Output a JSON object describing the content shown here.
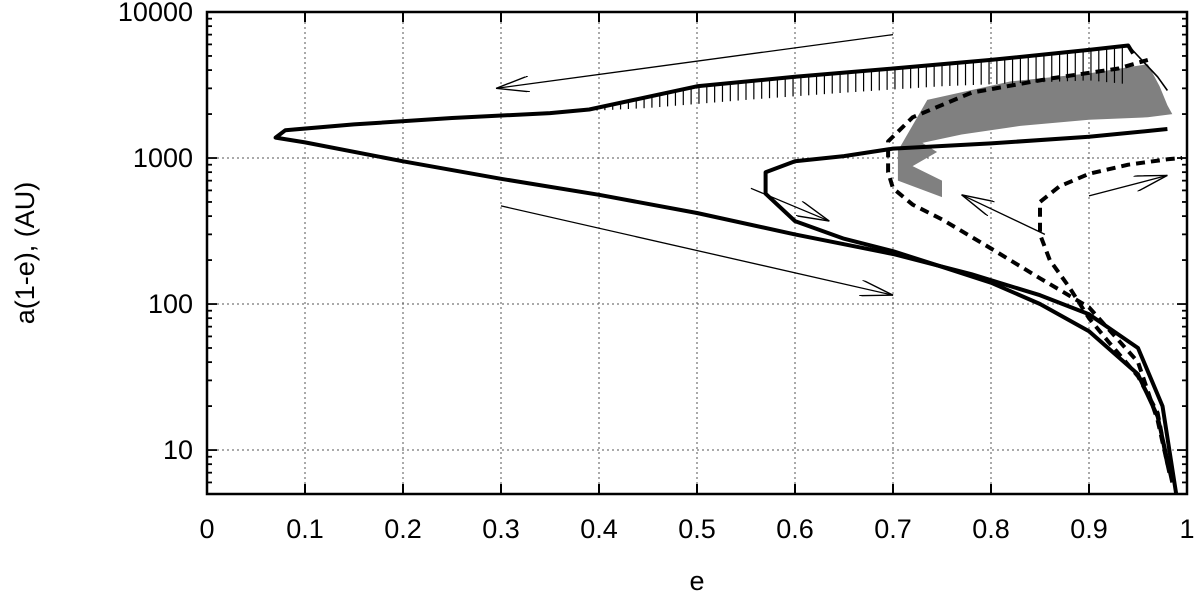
{
  "chart_data": {
    "type": "line",
    "title": "",
    "xlabel": "e",
    "ylabel": "a(1-e), (AU)",
    "xlim": [
      0,
      1
    ],
    "ylim": [
      5,
      10000
    ],
    "yscale": "log",
    "grid": true,
    "legend": "none",
    "x_ticks": [
      {
        "value": 0,
        "label": "0"
      },
      {
        "value": 0.1,
        "label": "0.1"
      },
      {
        "value": 0.2,
        "label": "0.2"
      },
      {
        "value": 0.3,
        "label": "0.3"
      },
      {
        "value": 0.4,
        "label": "0.4"
      },
      {
        "value": 0.5,
        "label": "0.5"
      },
      {
        "value": 0.6,
        "label": "0.6"
      },
      {
        "value": 0.7,
        "label": "0.7"
      },
      {
        "value": 0.8,
        "label": "0.8"
      },
      {
        "value": 0.9,
        "label": "0.9"
      },
      {
        "value": 1,
        "label": "1"
      }
    ],
    "y_ticks": [
      {
        "value": 10,
        "label": "10"
      },
      {
        "value": 100,
        "label": "100"
      },
      {
        "value": 1000,
        "label": "1000"
      },
      {
        "value": 10000,
        "label": "10000"
      }
    ],
    "series": [
      {
        "style": "solid-thick",
        "points": [
          [
            0.989,
            5
          ],
          [
            0.975,
            20
          ],
          [
            0.95,
            50
          ],
          [
            0.9,
            85
          ],
          [
            0.85,
            115
          ],
          [
            0.78,
            160
          ],
          [
            0.7,
            220
          ],
          [
            0.6,
            300
          ],
          [
            0.5,
            420
          ],
          [
            0.4,
            560
          ],
          [
            0.3,
            720
          ],
          [
            0.2,
            950
          ],
          [
            0.1,
            1280
          ],
          [
            0.07,
            1380
          ],
          [
            0.08,
            1550
          ],
          [
            0.15,
            1700
          ],
          [
            0.25,
            1880
          ],
          [
            0.35,
            2030
          ],
          [
            0.39,
            2150
          ],
          [
            0.5,
            3100
          ],
          [
            0.6,
            3600
          ],
          [
            0.7,
            4100
          ],
          [
            0.8,
            4700
          ],
          [
            0.9,
            5500
          ],
          [
            0.94,
            5900
          ],
          [
            0.945,
            5200
          ]
        ]
      },
      {
        "style": "solid-thin",
        "points": [
          [
            0.94,
            5900
          ],
          [
            0.955,
            4600
          ],
          [
            0.97,
            3600
          ],
          [
            0.98,
            2900
          ]
        ]
      },
      {
        "style": "solid-thick",
        "points": [
          [
            0.985,
            6
          ],
          [
            0.97,
            17
          ],
          [
            0.95,
            33
          ],
          [
            0.9,
            65
          ],
          [
            0.85,
            100
          ],
          [
            0.8,
            140
          ],
          [
            0.75,
            180
          ],
          [
            0.7,
            230
          ],
          [
            0.65,
            280
          ],
          [
            0.6,
            370
          ],
          [
            0.57,
            570
          ],
          [
            0.57,
            800
          ],
          [
            0.6,
            950
          ],
          [
            0.65,
            1030
          ],
          [
            0.7,
            1160
          ],
          [
            0.8,
            1260
          ],
          [
            0.9,
            1400
          ],
          [
            0.96,
            1530
          ],
          [
            0.98,
            1580
          ]
        ]
      },
      {
        "style": "dashed-thick",
        "points": [
          [
            0.982,
            7
          ],
          [
            0.97,
            16
          ],
          [
            0.95,
            40
          ],
          [
            0.9,
            95
          ],
          [
            0.85,
            150
          ],
          [
            0.8,
            240
          ],
          [
            0.75,
            380
          ],
          [
            0.72,
            480
          ],
          [
            0.7,
            620
          ],
          [
            0.695,
            800
          ],
          [
            0.695,
            1300
          ],
          [
            0.72,
            1900
          ],
          [
            0.78,
            2800
          ],
          [
            0.86,
            3500
          ],
          [
            0.93,
            4100
          ],
          [
            0.96,
            4700
          ]
        ]
      },
      {
        "style": "dashed-thick",
        "points": [
          [
            0.98,
            8
          ],
          [
            0.97,
            18
          ],
          [
            0.95,
            32
          ],
          [
            0.92,
            55
          ],
          [
            0.9,
            80
          ],
          [
            0.88,
            130
          ],
          [
            0.86,
            200
          ],
          [
            0.85,
            300
          ],
          [
            0.85,
            500
          ],
          [
            0.87,
            640
          ],
          [
            0.9,
            780
          ],
          [
            0.94,
            900
          ],
          [
            0.98,
            980
          ],
          [
            0.995,
            1000
          ]
        ]
      }
    ],
    "regions": [
      {
        "fill": "#808080",
        "polygon": [
          [
            0.705,
            1120
          ],
          [
            0.735,
            2500
          ],
          [
            0.82,
            3350
          ],
          [
            0.9,
            3800
          ],
          [
            0.96,
            4400
          ],
          [
            0.972,
            3100
          ],
          [
            0.98,
            2300
          ],
          [
            0.985,
            2000
          ],
          [
            0.96,
            1900
          ],
          [
            0.9,
            1830
          ],
          [
            0.83,
            1660
          ],
          [
            0.77,
            1450
          ],
          [
            0.73,
            1270
          ],
          [
            0.745,
            1100
          ],
          [
            0.72,
            880
          ],
          [
            0.75,
            700
          ],
          [
            0.75,
            540
          ],
          [
            0.705,
            700
          ]
        ]
      }
    ],
    "hatch": {
      "color": "#000000",
      "step": 0.008,
      "upper": [
        [
          0.39,
          2150
        ],
        [
          0.5,
          3100
        ],
        [
          0.6,
          3600
        ],
        [
          0.7,
          4100
        ],
        [
          0.8,
          4700
        ],
        [
          0.9,
          5500
        ],
        [
          0.94,
          5900
        ]
      ],
      "lower": [
        [
          0.39,
          2100
        ],
        [
          0.45,
          2200
        ],
        [
          0.55,
          2500
        ],
        [
          0.65,
          2800
        ],
        [
          0.75,
          3100
        ],
        [
          0.85,
          3300
        ],
        [
          0.9,
          3400
        ],
        [
          0.94,
          3200
        ],
        [
          0.96,
          2200
        ],
        [
          0.975,
          2000
        ]
      ]
    },
    "arrows": [
      {
        "from": [
          0.7,
          7000
        ],
        "to": [
          0.295,
          3000
        ]
      },
      {
        "from": [
          0.3,
          470
        ],
        "to": [
          0.7,
          115
        ]
      },
      {
        "from": [
          0.555,
          620
        ],
        "to": [
          0.635,
          370
        ]
      },
      {
        "from": [
          0.855,
          300
        ],
        "to": [
          0.77,
          560
        ]
      },
      {
        "from": [
          0.9,
          550
        ],
        "to": [
          0.98,
          760
        ]
      }
    ]
  }
}
